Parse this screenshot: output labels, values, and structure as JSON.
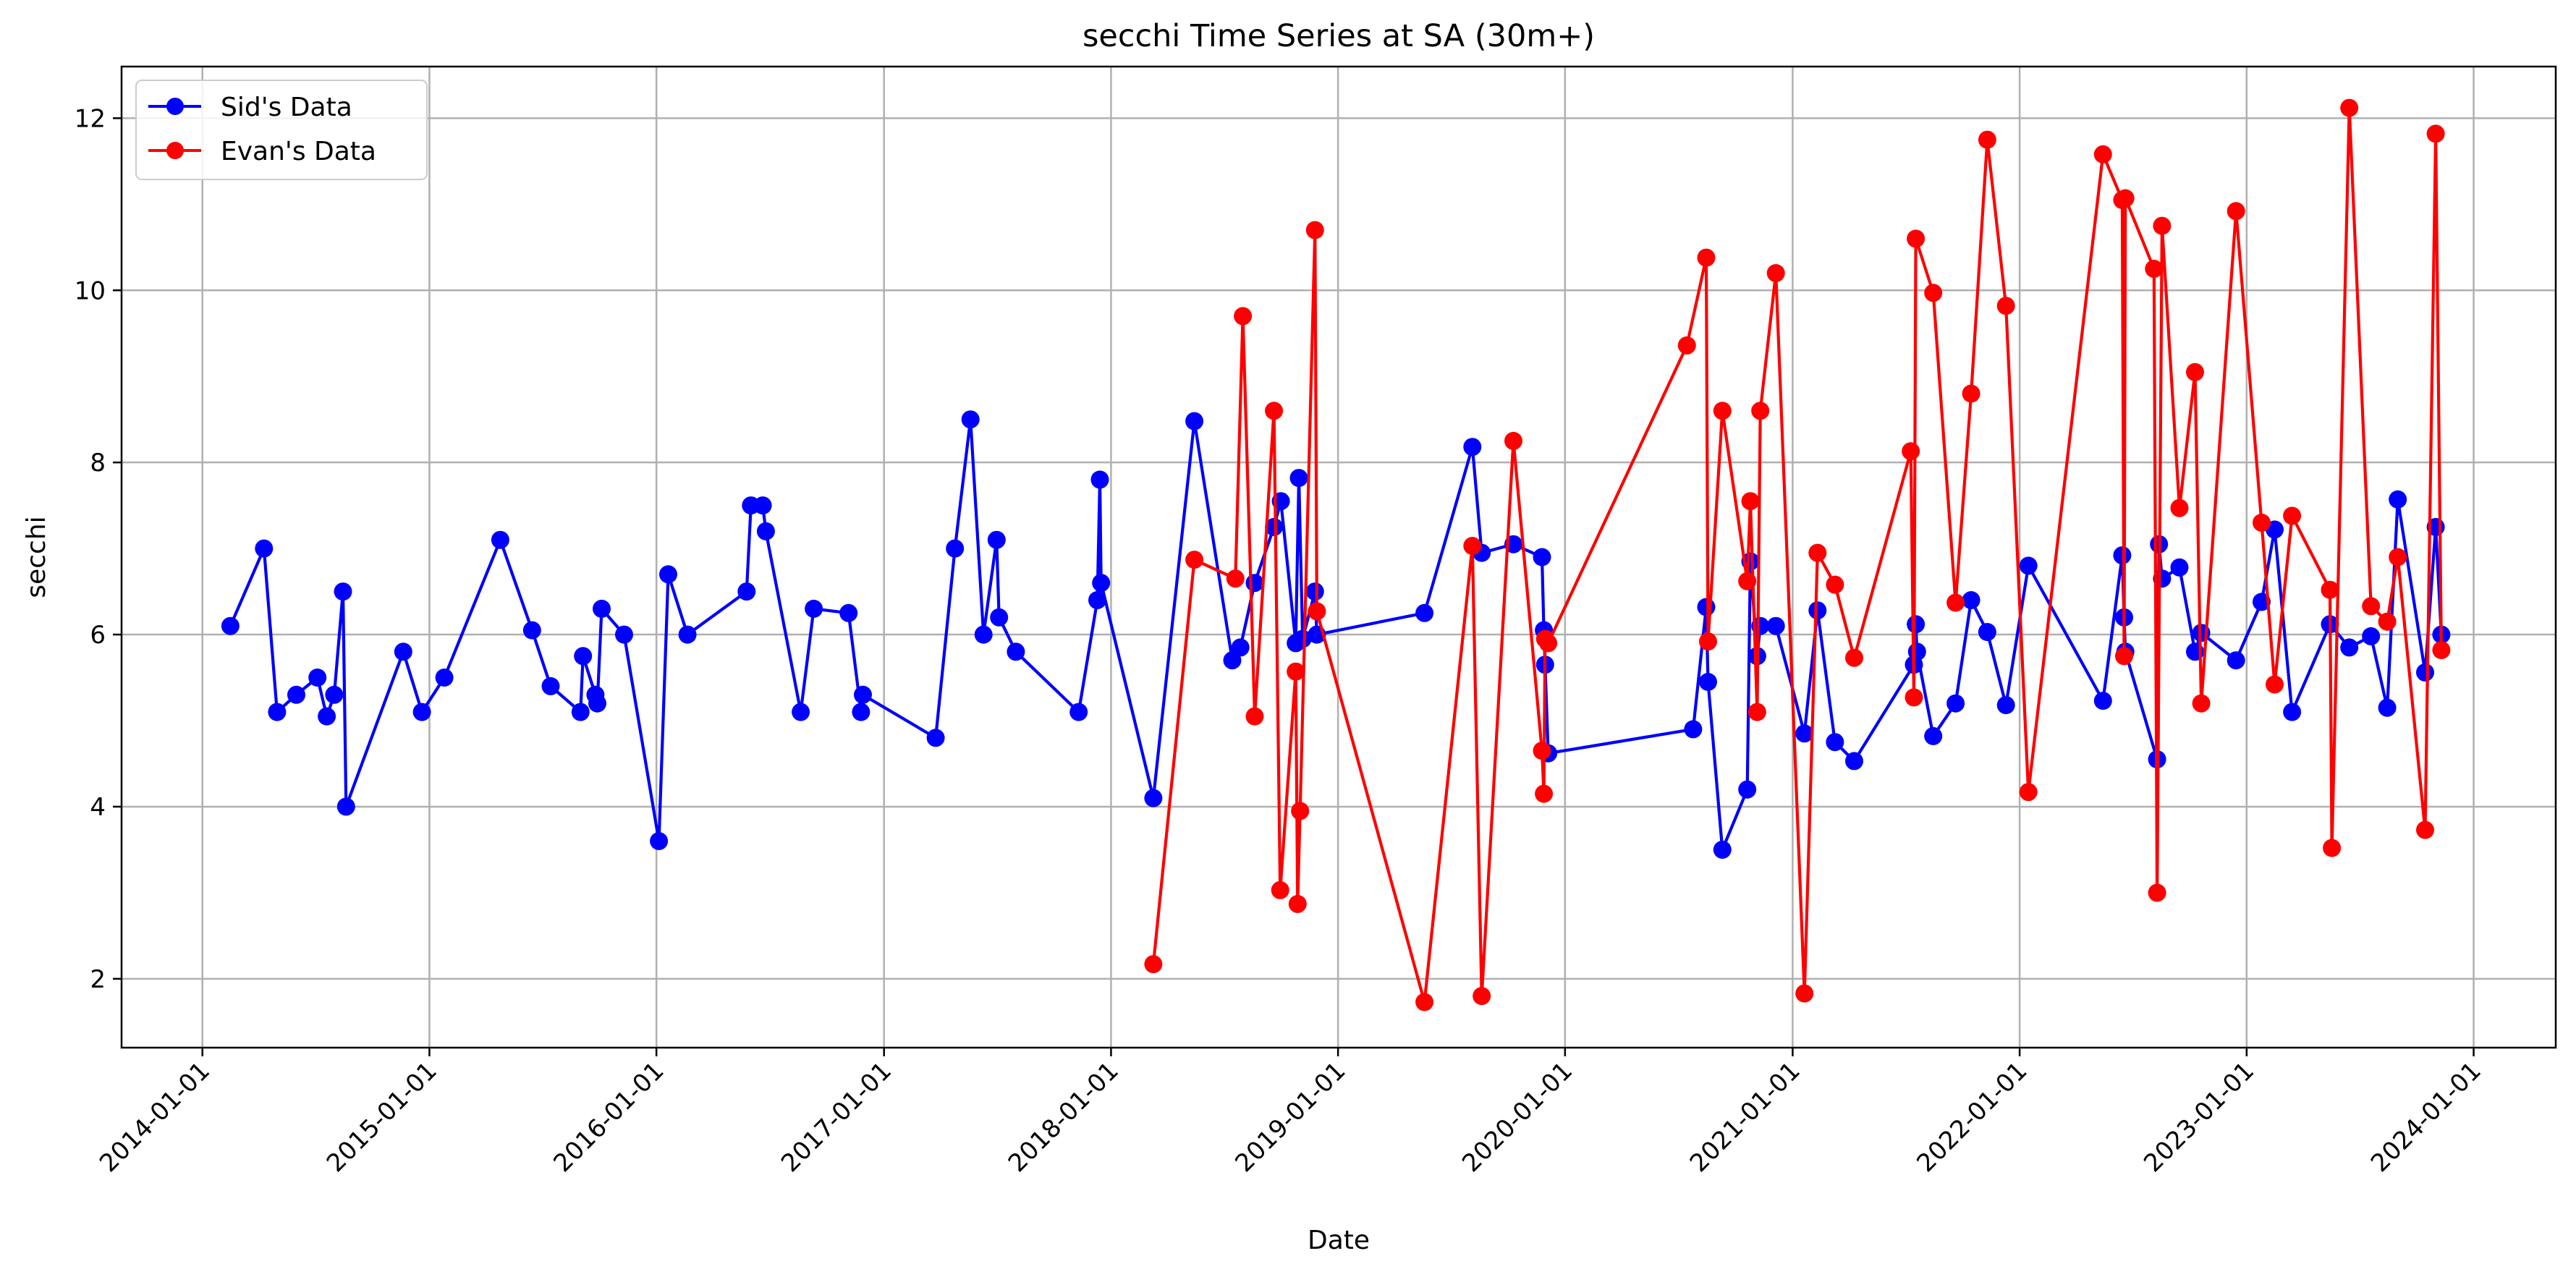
{
  "chart_data": {
    "type": "line",
    "title": "secchi Time Series at SA (30m+)",
    "xlabel": "Date",
    "ylabel": "secchi",
    "x_type": "date",
    "xlim": [
      "2013-08-24",
      "2024-05-12"
    ],
    "ylim": [
      1.2,
      12.6
    ],
    "x_ticks": [
      "2014-01-01",
      "2015-01-01",
      "2016-01-01",
      "2017-01-01",
      "2018-01-01",
      "2019-01-01",
      "2020-01-01",
      "2021-01-01",
      "2022-01-01",
      "2023-01-01",
      "2024-01-01"
    ],
    "y_ticks": [
      2,
      4,
      6,
      8,
      10,
      12
    ],
    "grid": true,
    "legend": "top-left",
    "series": [
      {
        "name": "Sid's Data",
        "color": "#0000ff",
        "points": [
          [
            "2014-02-15",
            6.1
          ],
          [
            "2014-04-10",
            7.0
          ],
          [
            "2014-05-01",
            5.1
          ],
          [
            "2014-06-01",
            5.3
          ],
          [
            "2014-07-05",
            5.5
          ],
          [
            "2014-07-20",
            5.05
          ],
          [
            "2014-08-01",
            5.3
          ],
          [
            "2014-08-15",
            6.5
          ],
          [
            "2014-08-20",
            4.0
          ],
          [
            "2014-11-20",
            5.8
          ],
          [
            "2014-12-20",
            5.1
          ],
          [
            "2015-01-25",
            5.5
          ],
          [
            "2015-04-25",
            7.1
          ],
          [
            "2015-06-15",
            6.05
          ],
          [
            "2015-07-15",
            5.4
          ],
          [
            "2015-09-01",
            5.1
          ],
          [
            "2015-09-05",
            5.75
          ],
          [
            "2015-09-25",
            5.3
          ],
          [
            "2015-09-28",
            5.2
          ],
          [
            "2015-10-05",
            6.3
          ],
          [
            "2015-11-10",
            6.0
          ],
          [
            "2016-01-05",
            3.6
          ],
          [
            "2016-01-20",
            6.7
          ],
          [
            "2016-02-20",
            6.0
          ],
          [
            "2016-05-25",
            6.5
          ],
          [
            "2016-06-01",
            7.5
          ],
          [
            "2016-06-20",
            7.5
          ],
          [
            "2016-06-25",
            7.2
          ],
          [
            "2016-08-20",
            5.1
          ],
          [
            "2016-09-10",
            6.3
          ],
          [
            "2016-11-05",
            6.25
          ],
          [
            "2016-11-25",
            5.1
          ],
          [
            "2016-11-28",
            5.3
          ],
          [
            "2017-03-25",
            4.8
          ],
          [
            "2017-04-25",
            7.0
          ],
          [
            "2017-05-20",
            8.5
          ],
          [
            "2017-06-10",
            6.0
          ],
          [
            "2017-07-01",
            7.1
          ],
          [
            "2017-07-05",
            6.2
          ],
          [
            "2017-08-01",
            5.8
          ],
          [
            "2017-11-10",
            5.1
          ],
          [
            "2017-12-10",
            6.4
          ],
          [
            "2017-12-14",
            7.8
          ],
          [
            "2017-12-16",
            6.6
          ],
          [
            "2018-03-10",
            4.1
          ],
          [
            "2018-05-15",
            8.48
          ],
          [
            "2018-07-15",
            5.7
          ],
          [
            "2018-07-28",
            5.85
          ],
          [
            "2018-08-20",
            6.6
          ],
          [
            "2018-09-20",
            7.25
          ],
          [
            "2018-10-01",
            7.55
          ],
          [
            "2018-10-25",
            5.9
          ],
          [
            "2018-10-30",
            7.82
          ],
          [
            "2018-11-05",
            5.95
          ],
          [
            "2018-11-25",
            6.5
          ],
          [
            "2018-11-28",
            6.0
          ],
          [
            "2019-05-20",
            6.25
          ],
          [
            "2019-08-05",
            8.18
          ],
          [
            "2019-08-20",
            6.95
          ],
          [
            "2019-10-10",
            7.05
          ],
          [
            "2019-11-25",
            6.9
          ],
          [
            "2019-11-28",
            6.05
          ],
          [
            "2019-11-30",
            5.65
          ],
          [
            "2019-12-05",
            4.62
          ],
          [
            "2020-07-25",
            4.9
          ],
          [
            "2020-08-15",
            6.32
          ],
          [
            "2020-08-18",
            5.45
          ],
          [
            "2020-09-10",
            3.5
          ],
          [
            "2020-10-20",
            4.2
          ],
          [
            "2020-10-25",
            6.85
          ],
          [
            "2020-11-05",
            5.75
          ],
          [
            "2020-11-10",
            6.1
          ],
          [
            "2020-12-05",
            6.1
          ],
          [
            "2021-01-20",
            4.85
          ],
          [
            "2021-02-10",
            6.28
          ],
          [
            "2021-03-10",
            4.75
          ],
          [
            "2021-04-10",
            4.53
          ],
          [
            "2021-07-15",
            5.65
          ],
          [
            "2021-07-18",
            6.12
          ],
          [
            "2021-07-20",
            5.8
          ],
          [
            "2021-08-15",
            4.82
          ],
          [
            "2021-09-20",
            5.2
          ],
          [
            "2021-10-15",
            6.4
          ],
          [
            "2021-11-10",
            6.03
          ],
          [
            "2021-12-10",
            5.18
          ],
          [
            "2022-01-15",
            6.8
          ],
          [
            "2022-05-15",
            5.23
          ],
          [
            "2022-06-15",
            6.92
          ],
          [
            "2022-06-18",
            6.2
          ],
          [
            "2022-06-20",
            5.8
          ],
          [
            "2022-08-10",
            4.55
          ],
          [
            "2022-08-13",
            7.05
          ],
          [
            "2022-08-18",
            6.65
          ],
          [
            "2022-09-15",
            6.78
          ],
          [
            "2022-10-10",
            5.8
          ],
          [
            "2022-10-20",
            6.02
          ],
          [
            "2022-12-15",
            5.7
          ],
          [
            "2023-01-25",
            6.38
          ],
          [
            "2023-02-15",
            7.22
          ],
          [
            "2023-03-15",
            5.1
          ],
          [
            "2023-05-15",
            6.12
          ],
          [
            "2023-06-15",
            5.85
          ],
          [
            "2023-07-20",
            5.98
          ],
          [
            "2023-08-15",
            5.15
          ],
          [
            "2023-09-01",
            7.57
          ],
          [
            "2023-10-15",
            5.56
          ],
          [
            "2023-11-01",
            7.25
          ],
          [
            "2023-11-10",
            6.0
          ]
        ]
      },
      {
        "name": "Evan's Data",
        "color": "#ff0000",
        "points": [
          [
            "2018-03-10",
            2.17
          ],
          [
            "2018-05-15",
            6.87
          ],
          [
            "2018-07-20",
            6.65
          ],
          [
            "2018-08-01",
            9.7
          ],
          [
            "2018-08-20",
            5.05
          ],
          [
            "2018-09-20",
            8.6
          ],
          [
            "2018-09-30",
            3.03
          ],
          [
            "2018-10-25",
            5.57
          ],
          [
            "2018-10-28",
            2.87
          ],
          [
            "2018-11-01",
            3.95
          ],
          [
            "2018-11-25",
            10.7
          ],
          [
            "2018-11-28",
            6.27
          ],
          [
            "2019-05-20",
            1.73
          ],
          [
            "2019-08-05",
            7.03
          ],
          [
            "2019-08-20",
            1.8
          ],
          [
            "2019-10-10",
            8.25
          ],
          [
            "2019-11-25",
            4.65
          ],
          [
            "2019-11-28",
            4.15
          ],
          [
            "2019-11-30",
            5.95
          ],
          [
            "2019-12-05",
            5.9
          ],
          [
            "2020-07-15",
            9.36
          ],
          [
            "2020-08-15",
            10.38
          ],
          [
            "2020-08-18",
            5.92
          ],
          [
            "2020-09-10",
            8.6
          ],
          [
            "2020-10-20",
            6.62
          ],
          [
            "2020-10-25",
            7.55
          ],
          [
            "2020-11-05",
            5.1
          ],
          [
            "2020-11-10",
            8.6
          ],
          [
            "2020-12-05",
            10.2
          ],
          [
            "2021-01-20",
            1.83
          ],
          [
            "2021-02-10",
            6.95
          ],
          [
            "2021-03-10",
            6.58
          ],
          [
            "2021-04-10",
            5.73
          ],
          [
            "2021-07-10",
            8.13
          ],
          [
            "2021-07-15",
            5.27
          ],
          [
            "2021-07-18",
            10.6
          ],
          [
            "2021-08-15",
            9.97
          ],
          [
            "2021-09-20",
            6.37
          ],
          [
            "2021-10-15",
            8.8
          ],
          [
            "2021-11-10",
            11.75
          ],
          [
            "2021-12-10",
            9.82
          ],
          [
            "2022-01-15",
            4.17
          ],
          [
            "2022-05-15",
            11.58
          ],
          [
            "2022-06-15",
            11.05
          ],
          [
            "2022-06-18",
            5.75
          ],
          [
            "2022-06-20",
            11.07
          ],
          [
            "2022-08-05",
            10.25
          ],
          [
            "2022-08-10",
            3.0
          ],
          [
            "2022-08-18",
            10.75
          ],
          [
            "2022-09-15",
            7.47
          ],
          [
            "2022-10-10",
            9.05
          ],
          [
            "2022-10-20",
            5.2
          ],
          [
            "2022-12-15",
            10.92
          ],
          [
            "2023-01-25",
            7.3
          ],
          [
            "2023-02-15",
            5.42
          ],
          [
            "2023-03-15",
            7.38
          ],
          [
            "2023-05-15",
            6.52
          ],
          [
            "2023-05-18",
            3.52
          ],
          [
            "2023-06-15",
            12.12
          ],
          [
            "2023-07-20",
            6.33
          ],
          [
            "2023-08-15",
            6.15
          ],
          [
            "2023-09-01",
            6.9
          ],
          [
            "2023-10-15",
            3.73
          ],
          [
            "2023-11-01",
            11.82
          ],
          [
            "2023-11-10",
            5.82
          ]
        ]
      }
    ]
  }
}
